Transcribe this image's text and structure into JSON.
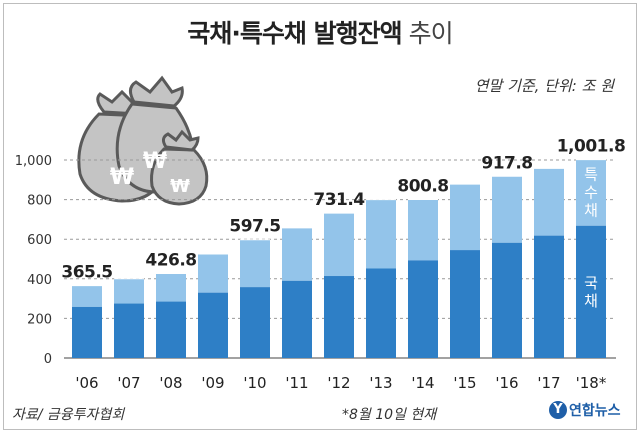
{
  "title_main": "국채·특수채 발행잔액",
  "title_light": "추이",
  "subtitle": "연말 기준, 단위: 조 원",
  "source": "자료/ 금융투자협회",
  "note": "*8월 10일 현재",
  "logo": {
    "mark": "Y",
    "text": "연합뉴스"
  },
  "colors": {
    "national": "#2e7fc6",
    "special": "#93c4ea",
    "grid": "#9a9a9a"
  },
  "chart_data": {
    "type": "bar",
    "stacked": true,
    "title": "국채·특수채 발행잔액 추이",
    "unit": "조 원",
    "categories": [
      "'06",
      "'07",
      "'08",
      "'09",
      "'10",
      "'11",
      "'12",
      "'13",
      "'14",
      "'15",
      "'16",
      "'17",
      "'18*"
    ],
    "series": [
      {
        "name": "국채",
        "values": [
          258,
          275,
          285,
          330,
          358,
          390,
          414,
          452,
          493,
          545,
          582,
          618,
          668
        ]
      },
      {
        "name": "특수채",
        "values": [
          107.5,
          125,
          141.8,
          195,
          239.5,
          267,
          317.4,
          348,
          307.8,
          333,
          335.8,
          340,
          333.8
        ]
      }
    ],
    "totals": [
      365.5,
      400,
      426.8,
      525,
      597.5,
      657,
      731.4,
      800,
      800.8,
      878,
      917.8,
      958,
      1001.8
    ],
    "data_labels": [
      {
        "index": 0,
        "text": "365.5"
      },
      {
        "index": 2,
        "text": "426.8"
      },
      {
        "index": 4,
        "text": "597.5"
      },
      {
        "index": 6,
        "text": "731.4"
      },
      {
        "index": 8,
        "text": "800.8"
      },
      {
        "index": 10,
        "text": "917.8"
      },
      {
        "index": 12,
        "text": "1,001.8"
      }
    ],
    "inbar_labels": {
      "special_chars": [
        "특",
        "수",
        "채"
      ],
      "national_chars": [
        "국",
        "채"
      ]
    },
    "yticks": [
      "0",
      "200",
      "400",
      "600",
      "800",
      "1,000"
    ],
    "ylim": [
      0,
      1000
    ],
    "grid": true
  }
}
